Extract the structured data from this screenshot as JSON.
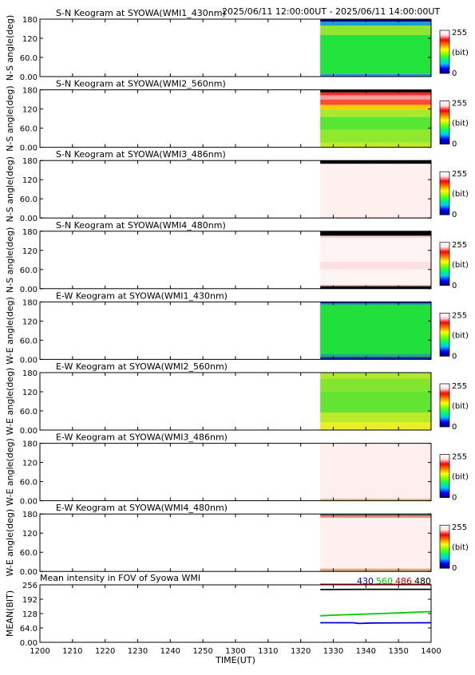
{
  "header": {
    "time_range": "2025/06/11 12:00:00UT - 2025/06/11 14:00:00UT"
  },
  "colorbar": {
    "max_label": "255",
    "unit_label": "(bit)",
    "min_label": "0",
    "stops": [
      "#00007a",
      "#0000ff",
      "#00c8ff",
      "#00ff60",
      "#7aff00",
      "#ffff00",
      "#ff8000",
      "#ff0000",
      "#ffe0e0",
      "#ffffff"
    ]
  },
  "chart_data": {
    "type": "heatmap",
    "x_axis": {
      "label": "TIME(UT)",
      "ticks": [
        "1200",
        "1210",
        "1220",
        "1230",
        "1240",
        "1250",
        "1300",
        "1310",
        "1320",
        "1330",
        "1340",
        "1350",
        "1400"
      ],
      "range": [
        "12:00",
        "14:00"
      ],
      "data_start": "13:26"
    },
    "y_axis": {
      "ticks": [
        "0.00",
        "60.0",
        "120",
        "180"
      ],
      "range": [
        0,
        180
      ]
    },
    "panels": [
      {
        "title": "S-N Keogram at SYOWA(WMI1_430nm)",
        "ylabel": "N-S angle(deg)",
        "bands": [
          {
            "from": 0,
            "to": 8,
            "color": "#2f8ae0"
          },
          {
            "from": 8,
            "to": 130,
            "color": "#22e23c"
          },
          {
            "from": 130,
            "to": 160,
            "color": "#8ee632"
          },
          {
            "from": 160,
            "to": 172,
            "color": "#1f9ad8"
          },
          {
            "from": 172,
            "to": 180,
            "color": "#0a0a70"
          }
        ]
      },
      {
        "title": "S-N Keogram at SYOWA(WMI2_560nm)",
        "ylabel": "N-S angle(deg)",
        "bands": [
          {
            "from": 0,
            "to": 15,
            "color": "#c2ea2c"
          },
          {
            "from": 15,
            "to": 55,
            "color": "#90e92e"
          },
          {
            "from": 55,
            "to": 95,
            "color": "#58e633"
          },
          {
            "from": 95,
            "to": 118,
            "color": "#a6ea2e"
          },
          {
            "from": 118,
            "to": 133,
            "color": "#ffcc00"
          },
          {
            "from": 133,
            "to": 150,
            "color": "#ff4b3a"
          },
          {
            "from": 150,
            "to": 163,
            "color": "#ff9a9a"
          },
          {
            "from": 163,
            "to": 172,
            "color": "#ff2a2a"
          },
          {
            "from": 172,
            "to": 180,
            "color": "#000000"
          }
        ]
      },
      {
        "title": "S-N Keogram at SYOWA(WMI3_486nm)",
        "ylabel": "N-S angle(deg)",
        "bands": [
          {
            "from": 0,
            "to": 3,
            "color": "#ffd0d0"
          },
          {
            "from": 3,
            "to": 170,
            "color": "#fff0f0"
          },
          {
            "from": 170,
            "to": 180,
            "color": "#000000"
          }
        ]
      },
      {
        "title": "S-N Keogram at SYOWA(WMI4_480nm)",
        "ylabel": "N-S angle(deg)",
        "bands": [
          {
            "from": 0,
            "to": 8,
            "color": "#000000"
          },
          {
            "from": 8,
            "to": 12,
            "color": "#ffb0b0"
          },
          {
            "from": 12,
            "to": 60,
            "color": "#fff4f4"
          },
          {
            "from": 60,
            "to": 85,
            "color": "#ffe0e0"
          },
          {
            "from": 85,
            "to": 160,
            "color": "#fff4f4"
          },
          {
            "from": 160,
            "to": 166,
            "color": "#ffc8c8"
          },
          {
            "from": 166,
            "to": 180,
            "color": "#000000"
          }
        ]
      },
      {
        "title": "E-W Keogram at SYOWA(WMI1_430nm)",
        "ylabel": "W-E angle(deg)",
        "bands": [
          {
            "from": 0,
            "to": 8,
            "color": "#102c9a"
          },
          {
            "from": 8,
            "to": 18,
            "color": "#1bb07a"
          },
          {
            "from": 18,
            "to": 170,
            "color": "#22e03c"
          },
          {
            "from": 170,
            "to": 175,
            "color": "#1ba8a0"
          },
          {
            "from": 175,
            "to": 180,
            "color": "#102c9a"
          }
        ]
      },
      {
        "title": "E-W Keogram at SYOWA(WMI2_560nm)",
        "ylabel": "W-E angle(deg)",
        "bands": [
          {
            "from": 0,
            "to": 25,
            "color": "#eaee28"
          },
          {
            "from": 25,
            "to": 55,
            "color": "#b8ea2a"
          },
          {
            "from": 55,
            "to": 120,
            "color": "#62e433"
          },
          {
            "from": 120,
            "to": 160,
            "color": "#82e631"
          },
          {
            "from": 160,
            "to": 180,
            "color": "#aee82e"
          }
        ]
      },
      {
        "title": "E-W Keogram at SYOWA(WMI3_486nm)",
        "ylabel": "W-E angle(deg)",
        "bands": [
          {
            "from": 0,
            "to": 3,
            "color": "#c9c35a"
          },
          {
            "from": 3,
            "to": 7,
            "color": "#f3b18c"
          },
          {
            "from": 7,
            "to": 180,
            "color": "#ffeeee"
          }
        ]
      },
      {
        "title": "E-W Keogram at SYOWA(WMI4_480nm)",
        "ylabel": "W-E angle(deg)",
        "bands": [
          {
            "from": 0,
            "to": 4,
            "color": "#a7b35a"
          },
          {
            "from": 4,
            "to": 9,
            "color": "#ff9a7a"
          },
          {
            "from": 9,
            "to": 168,
            "color": "#fff0f0"
          },
          {
            "from": 168,
            "to": 174,
            "color": "#ff8a8a"
          },
          {
            "from": 174,
            "to": 180,
            "color": "#4a7a5a"
          }
        ]
      }
    ],
    "mean_panel": {
      "title": "Mean intensity in FOV of Syowa WMI",
      "ylabel": "MEAN(BIT)",
      "y_ticks": [
        "0.00",
        "64.0",
        "128",
        "192",
        "256"
      ],
      "ylim": [
        0,
        256
      ],
      "legend": [
        {
          "label": "430",
          "color": "#0000cc"
        },
        {
          "label": "560",
          "color": "#00cc00"
        },
        {
          "label": "486",
          "color": "#cc0000"
        },
        {
          "label": "480",
          "color": "#000000"
        }
      ],
      "series": [
        {
          "name": "486",
          "color": "#cc0000",
          "x": [
            "13:26",
            "13:40",
            "14:00"
          ],
          "values": [
            258,
            258,
            258
          ]
        },
        {
          "name": "480",
          "color": "#000000",
          "x": [
            "13:26",
            "13:40",
            "14:00"
          ],
          "values": [
            235,
            236,
            236
          ]
        },
        {
          "name": "560",
          "color": "#00cc00",
          "x": [
            "13:26",
            "13:30",
            "13:40",
            "13:50",
            "14:00"
          ],
          "values": [
            118,
            121,
            126,
            131,
            137
          ]
        },
        {
          "name": "430",
          "color": "#0000cc",
          "x": [
            "13:26",
            "13:36",
            "13:38",
            "13:42",
            "14:00"
          ],
          "values": [
            87,
            87,
            84,
            86,
            87
          ]
        }
      ]
    }
  }
}
